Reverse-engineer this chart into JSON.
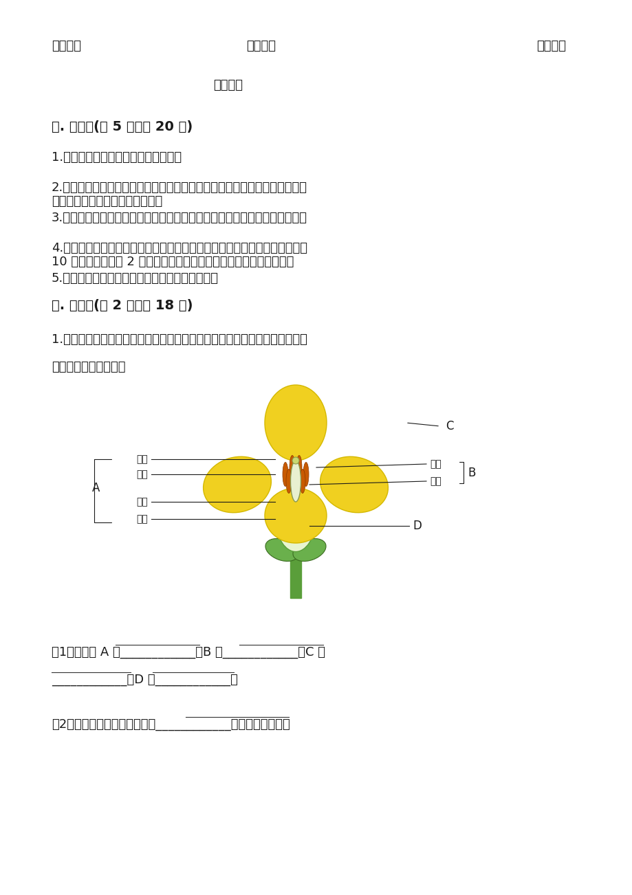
{
  "bg_color": "#ffffff",
  "text_color": "#1a1a1a",
  "line1_items": [
    "风力传播",
    "弹力传播",
    "动物传播"
  ],
  "line2_item": "水力传播",
  "section5_title": "五. 简答题(共 5 题，共 20 分)",
  "section5_questions": [
    "1.绿色开花植物一生会经历那些过程？",
    "2.为了更好地研究油菜花，我们还可以到野外油菜地去，油菜地里总有蜜蜂飞\n来飞去，这对油菜花有什么好处？",
    "3.植物与我们的生活密切相关，那么植物资源可以分成哪几类呢？举例说明。",
    "4.小美在自己家的屋后种了一株黄瓜，每天细心观察，她发现这株黄瓜共开了\n10 朵花，但只结了 2 根黄瓜。请你运用所学的知识来解释这一现象。",
    "5.我们看到了什么现象确信植物的绿叶蒸腾水分？"
  ],
  "section6_title": "六. 综合题(共 2 题，共 18 分)",
  "section6_q1_line1": "1.春天遍地是金黄的油菜花，图图来到油菜花田里观察油菜花，请你和她一起",
  "section6_q1_line2": "完成对油菜花的探究。",
  "sub_q1": "（1）上图中 A 是____________，B 是____________，C 是",
  "sub_q1_line2": "____________，D 是____________。",
  "sub_q2": "（2）解剖油菜花的正确顺序是____________（用字母表示）。"
}
